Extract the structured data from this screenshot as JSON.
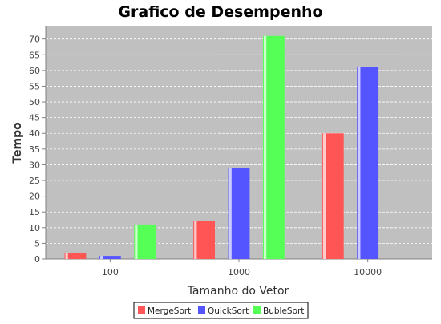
{
  "chart_data": {
    "type": "bar",
    "title": "Grafico de Desempenho",
    "xlabel": "Tamanho do Vetor",
    "ylabel": "Tempo",
    "categories": [
      "100",
      "1000",
      "10000"
    ],
    "series": [
      {
        "name": "MergeSort",
        "values": [
          2,
          12,
          40
        ],
        "color": "#ff5555"
      },
      {
        "name": "QuickSort",
        "values": [
          1,
          29,
          61
        ],
        "color": "#5555ff"
      },
      {
        "name": "BubleSort",
        "values": [
          11,
          71,
          0
        ],
        "color": "#55ff55"
      }
    ],
    "ylim": [
      0,
      74
    ],
    "yticks": [
      0,
      5,
      10,
      15,
      20,
      25,
      30,
      35,
      40,
      45,
      50,
      55,
      60,
      65,
      70
    ],
    "grid": true,
    "legend": "bottom",
    "plot_background": "#c0c0c0"
  }
}
